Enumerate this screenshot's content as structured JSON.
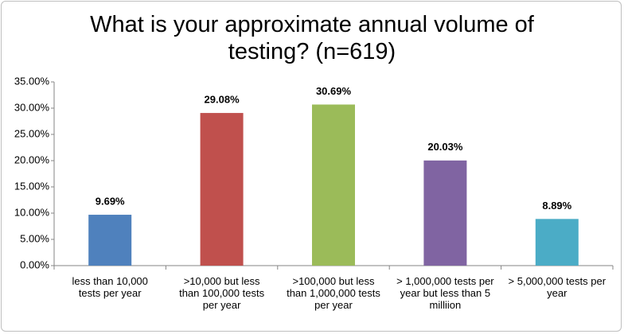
{
  "chart_data": {
    "type": "bar",
    "title": "What is your approximate annual volume of testing? (n=619)",
    "categories": [
      "less than 10,000 tests per year",
      ">10,000 but less than 100,000 tests per year",
      ">100,000 but less than 1,000,000 tests per year",
      "> 1,000,000 tests per year but less than 5 milliion",
      "> 5,000,000 tests per year"
    ],
    "values": [
      9.69,
      29.08,
      30.69,
      20.03,
      8.89
    ],
    "value_labels": [
      "9.69%",
      "29.08%",
      "30.69%",
      "20.03%",
      "8.89%"
    ],
    "colors": [
      "#4f81bd",
      "#c0504d",
      "#9bbb59",
      "#8064a2",
      "#4bacc6"
    ],
    "ylim": [
      0,
      35
    ],
    "yticks": [
      {
        "value": 0,
        "label": "0.00%"
      },
      {
        "value": 5,
        "label": "5.00%"
      },
      {
        "value": 10,
        "label": "10.00%"
      },
      {
        "value": 15,
        "label": "15.00%"
      },
      {
        "value": 20,
        "label": "20.00%"
      },
      {
        "value": 25,
        "label": "25.00%"
      },
      {
        "value": 30,
        "label": "30.00%"
      },
      {
        "value": 35,
        "label": "35.00%"
      }
    ],
    "grid": false
  }
}
